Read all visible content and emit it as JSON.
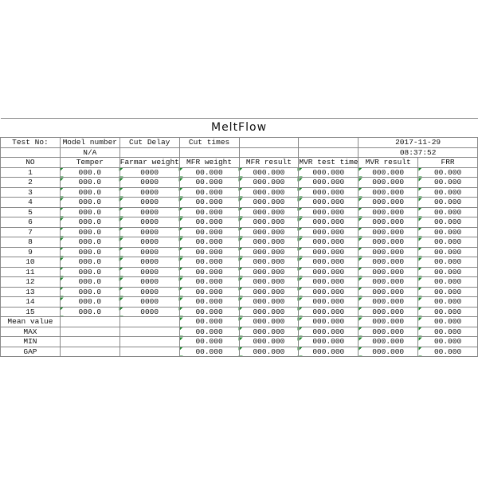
{
  "title": "MeltFlow",
  "info": {
    "test_no": "Test No:",
    "model_number": "Model number",
    "cut_delay": "Cut Delay",
    "cut_times": "Cut times",
    "date": "2017-11-29",
    "model": "N/A",
    "time": "08:37:52"
  },
  "table": {
    "header": [
      "NO",
      "Temper",
      "Farmar weight",
      "MFR weight",
      "MFR result",
      "MVR test time",
      "MVR result",
      "FRR"
    ],
    "rows": [
      [
        "1",
        "000.0",
        "0000",
        "00.000",
        "000.000",
        "000.000",
        "000.000",
        "00.000"
      ],
      [
        "2",
        "000.0",
        "0000",
        "00.000",
        "000.000",
        "000.000",
        "000.000",
        "00.000"
      ],
      [
        "3",
        "000.0",
        "0000",
        "00.000",
        "000.000",
        "000.000",
        "000.000",
        "00.000"
      ],
      [
        "4",
        "000.0",
        "0000",
        "00.000",
        "000.000",
        "000.000",
        "000.000",
        "00.000"
      ],
      [
        "5",
        "000.0",
        "0000",
        "00.000",
        "000.000",
        "000.000",
        "000.000",
        "00.000"
      ],
      [
        "6",
        "000.0",
        "0000",
        "00.000",
        "000.000",
        "000.000",
        "000.000",
        "00.000"
      ],
      [
        "7",
        "000.0",
        "0000",
        "00.000",
        "000.000",
        "000.000",
        "000.000",
        "00.000"
      ],
      [
        "8",
        "000.0",
        "0000",
        "00.000",
        "000.000",
        "000.000",
        "000.000",
        "00.000"
      ],
      [
        "9",
        "000.0",
        "0000",
        "00.000",
        "000.000",
        "000.000",
        "000.000",
        "00.000"
      ],
      [
        "10",
        "000.0",
        "0000",
        "00.000",
        "000.000",
        "000.000",
        "000.000",
        "00.000"
      ],
      [
        "11",
        "000.0",
        "0000",
        "00.000",
        "000.000",
        "000.000",
        "000.000",
        "00.000"
      ],
      [
        "12",
        "000.0",
        "0000",
        "00.000",
        "000.000",
        "000.000",
        "000.000",
        "00.000"
      ],
      [
        "13",
        "000.0",
        "0000",
        "00.000",
        "000.000",
        "000.000",
        "000.000",
        "00.000"
      ],
      [
        "14",
        "000.0",
        "0000",
        "00.000",
        "000.000",
        "000.000",
        "000.000",
        "00.000"
      ],
      [
        "15",
        "000.0",
        "0000",
        "00.000",
        "000.000",
        "000.000",
        "000.000",
        "00.000"
      ],
      [
        "Mean value",
        null,
        null,
        "00.000",
        "000.000",
        "000.000",
        "000.000",
        "00.000"
      ],
      [
        "MAX",
        null,
        null,
        "00.000",
        "000.000",
        "000.000",
        "000.000",
        "00.000"
      ],
      [
        "MIN",
        null,
        null,
        "00.000",
        "000.000",
        "000.000",
        "000.000",
        "00.000"
      ],
      [
        "GAP",
        null,
        null,
        "00.000",
        "000.000",
        "000.000",
        "000.000",
        "00.000"
      ]
    ]
  }
}
